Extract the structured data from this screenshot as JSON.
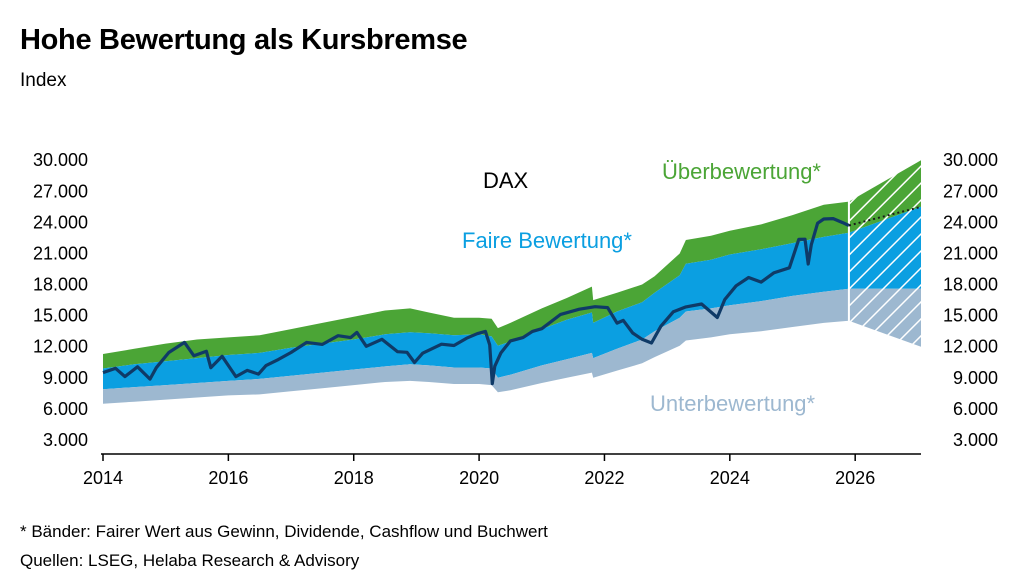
{
  "header": {
    "title": "Hohe Bewertung als Kursbremse",
    "subtitle": "Index"
  },
  "footer": {
    "note": "* Bänder: Fairer Wert aus Gewinn, Dividende, Cashflow und Buchwert",
    "source": "Quellen: LSEG, Helaba Research & Advisory"
  },
  "colors": {
    "overvaluation": "#4ba536",
    "fair": "#0b9fe1",
    "undervaluation": "#9db8d0",
    "dax_line": "#0f3a67"
  },
  "chart_data": {
    "type": "area",
    "title": "DAX",
    "xlabel": "",
    "ylabel": "",
    "xlim": [
      2014,
      2027.05
    ],
    "ylim": [
      3000,
      30500
    ],
    "x_ticks": [
      "2014",
      "2016",
      "2018",
      "2020",
      "2022",
      "2024",
      "2026"
    ],
    "y_ticks_left": [
      "30.000",
      "27.000",
      "24.000",
      "21.000",
      "18.000",
      "15.000",
      "12.000",
      "9.000",
      "6.000",
      "3.000"
    ],
    "y_ticks_right": [
      "30.000",
      "27.000",
      "24.000",
      "21.000",
      "18.000",
      "15.000",
      "12.000",
      "9.000",
      "6.000",
      "3.000"
    ],
    "annotations": {
      "over": "Überbewertung*",
      "fair": "Faire Bewertung*",
      "under": "Unterbewertung*"
    },
    "bands": {
      "x": [
        2014.0,
        2014.5,
        2015.0,
        2015.5,
        2016.0,
        2016.5,
        2017.0,
        2017.5,
        2018.0,
        2018.5,
        2018.9,
        2019.2,
        2019.6,
        2020.0,
        2020.2,
        2020.3,
        2020.5,
        2021.0,
        2021.4,
        2021.8,
        2021.82,
        2022.2,
        2022.6,
        2022.8,
        2023.2,
        2023.3,
        2023.7,
        2024.0,
        2024.5,
        2025.0,
        2025.5,
        2025.9
      ],
      "over_top": [
        11300,
        11800,
        12300,
        12700,
        12900,
        13100,
        13700,
        14300,
        14900,
        15500,
        15700,
        15300,
        14800,
        14800,
        14700,
        13800,
        14300,
        15700,
        16700,
        17800,
        16500,
        17200,
        18000,
        18800,
        21000,
        22300,
        22700,
        23200,
        23800,
        24700,
        25700,
        26000
      ],
      "fair_top": [
        9900,
        10300,
        10600,
        10900,
        11200,
        11400,
        11900,
        12300,
        12700,
        13200,
        13400,
        13300,
        13100,
        13200,
        13000,
        12100,
        12500,
        13700,
        14600,
        15300,
        14300,
        15400,
        16300,
        17200,
        18900,
        20000,
        20400,
        20900,
        21400,
        22000,
        22600,
        23000
      ],
      "fair_bottom": [
        7900,
        8100,
        8300,
        8500,
        8700,
        8900,
        9200,
        9500,
        9800,
        10100,
        10300,
        10200,
        10000,
        10000,
        9900,
        9000,
        9300,
        10200,
        10800,
        11400,
        10900,
        11800,
        12700,
        13500,
        14800,
        15400,
        15700,
        16000,
        16400,
        16900,
        17300,
        17600
      ],
      "under_bottom": [
        6500,
        6700,
        6900,
        7100,
        7300,
        7400,
        7700,
        8000,
        8300,
        8600,
        8700,
        8600,
        8400,
        8400,
        8300,
        7600,
        7800,
        8500,
        9000,
        9500,
        9000,
        9700,
        10400,
        11000,
        12100,
        12600,
        12900,
        13200,
        13500,
        13900,
        14300,
        14500
      ]
    },
    "forecast": {
      "x": [
        2025.9,
        2027.05
      ],
      "over_top": [
        26000,
        30000
      ],
      "fair_top": [
        23000,
        25500
      ],
      "fair_bottom": [
        17600,
        17600
      ],
      "under_bottom": [
        14500,
        12000
      ]
    },
    "series": [
      {
        "name": "DAX",
        "x": [
          2014.0,
          2014.2,
          2014.35,
          2014.55,
          2014.75,
          2014.85,
          2015.05,
          2015.3,
          2015.45,
          2015.65,
          2015.72,
          2015.9,
          2016.05,
          2016.12,
          2016.3,
          2016.48,
          2016.6,
          2016.8,
          2017.0,
          2017.25,
          2017.5,
          2017.75,
          2017.95,
          2018.05,
          2018.2,
          2018.45,
          2018.7,
          2018.85,
          2018.97,
          2019.1,
          2019.4,
          2019.6,
          2019.8,
          2019.97,
          2020.1,
          2020.17,
          2020.21,
          2020.25,
          2020.35,
          2020.5,
          2020.7,
          2020.85,
          2021.0,
          2021.3,
          2021.6,
          2021.85,
          2022.05,
          2022.2,
          2022.3,
          2022.45,
          2022.6,
          2022.75,
          2022.9,
          2023.1,
          2023.3,
          2023.55,
          2023.8,
          2023.92,
          2024.1,
          2024.3,
          2024.5,
          2024.7,
          2024.95,
          2025.1,
          2025.2,
          2025.25,
          2025.3,
          2025.4,
          2025.5,
          2025.65,
          2025.8,
          2025.9
        ],
        "values": [
          9500,
          9800,
          9300,
          10000,
          9000,
          9800,
          11500,
          12300,
          11300,
          11500,
          10100,
          10900,
          9800,
          9000,
          9900,
          9300,
          10300,
          10600,
          11500,
          12300,
          12400,
          13000,
          13000,
          13200,
          12100,
          12600,
          11700,
          11400,
          10600,
          11200,
          12300,
          12000,
          13000,
          13200,
          13600,
          12000,
          8500,
          10000,
          11600,
          12500,
          13000,
          13300,
          13800,
          15000,
          15800,
          15800,
          15900,
          14100,
          14600,
          13200,
          12900,
          12300,
          14100,
          15200,
          15900,
          16000,
          15000,
          16500,
          18000,
          18500,
          18300,
          19000,
          19800,
          22300,
          22500,
          19800,
          21900,
          23800,
          24500,
          24300,
          24100,
          23700
        ]
      }
    ],
    "dax_projection": {
      "x": [
        2025.9,
        2027.05
      ],
      "values": [
        23700,
        25500
      ]
    }
  }
}
